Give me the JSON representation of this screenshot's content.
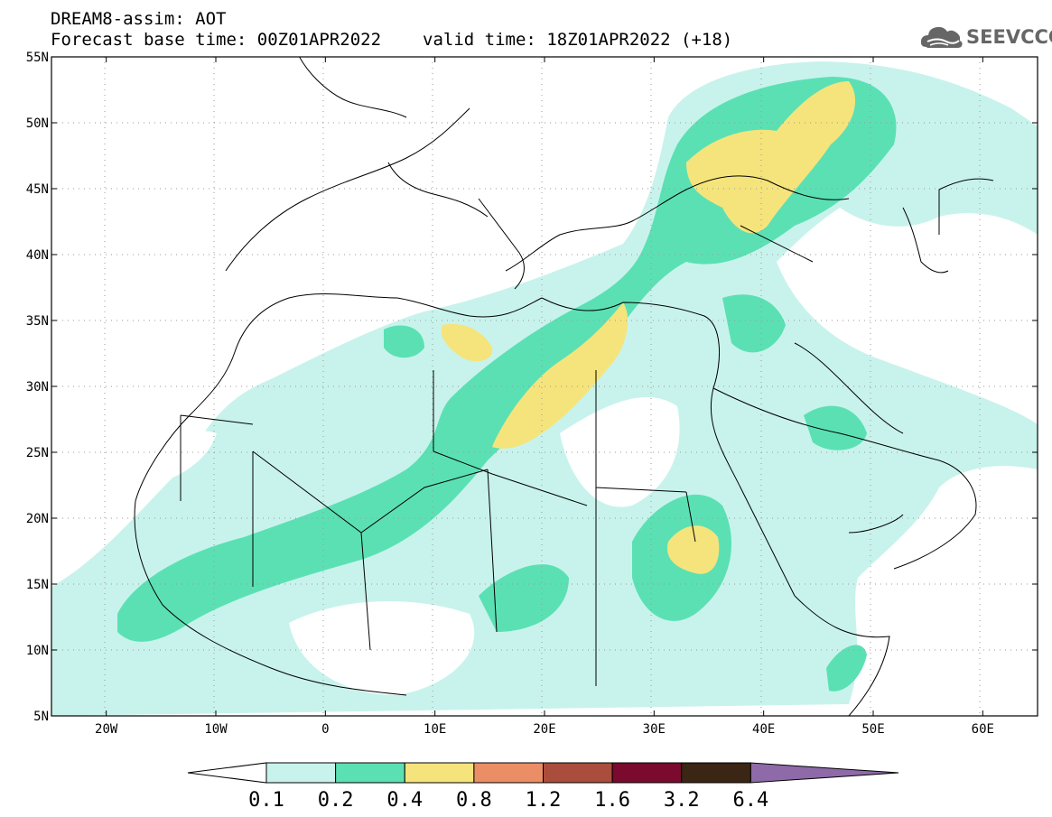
{
  "header": {
    "line1": "DREAM8-assim: AOT",
    "base_time": "Forecast base time: 00Z01APR2022",
    "valid_time": "valid time: 18Z01APR2022 (+18)"
  },
  "logo": {
    "text": "SEEVCCC",
    "icon": "cloud-icon",
    "color": "#666666"
  },
  "map": {
    "lon_range": [
      -25,
      65
    ],
    "lat_range": [
      5,
      55
    ],
    "lon_ticks": [
      {
        "value": -20,
        "label": "20W"
      },
      {
        "value": -10,
        "label": "10W"
      },
      {
        "value": 0,
        "label": "0"
      },
      {
        "value": 10,
        "label": "10E"
      },
      {
        "value": 20,
        "label": "20E"
      },
      {
        "value": 30,
        "label": "30E"
      },
      {
        "value": 40,
        "label": "40E"
      },
      {
        "value": 50,
        "label": "50E"
      },
      {
        "value": 60,
        "label": "60E"
      }
    ],
    "lat_ticks": [
      {
        "value": 55,
        "label": "55N"
      },
      {
        "value": 50,
        "label": "50N"
      },
      {
        "value": 45,
        "label": "45N"
      },
      {
        "value": 40,
        "label": "40N"
      },
      {
        "value": 35,
        "label": "35N"
      },
      {
        "value": 30,
        "label": "30N"
      },
      {
        "value": 25,
        "label": "25N"
      },
      {
        "value": 20,
        "label": "20N"
      },
      {
        "value": 15,
        "label": "15N"
      },
      {
        "value": 10,
        "label": "10N"
      },
      {
        "value": 5,
        "label": "5N"
      }
    ],
    "grid": true
  },
  "colorbar": {
    "labels": [
      "0.1",
      "0.2",
      "0.4",
      "0.8",
      "1.2",
      "1.6",
      "3.2",
      "6.4"
    ],
    "colors": [
      "#c8f3ec",
      "#5be0b4",
      "#f5e47c",
      "#eb8e66",
      "#aa4d3c",
      "#7a0a2e",
      "#3b2514",
      "#8e6aa8"
    ]
  }
}
